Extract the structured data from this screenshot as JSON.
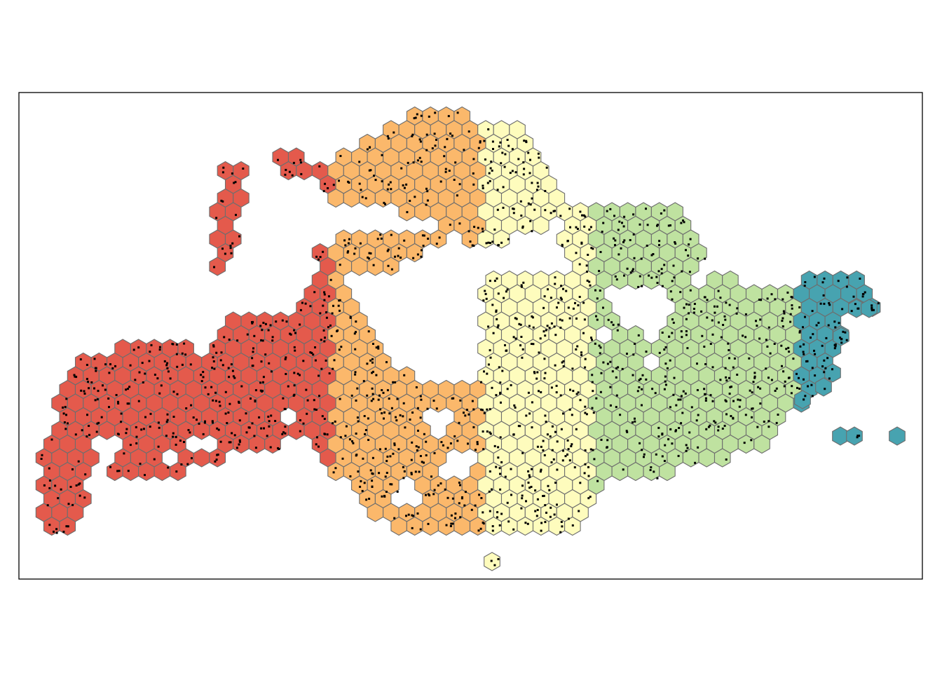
{
  "map": {
    "type": "hexbin-cluster-map",
    "frame": true,
    "hex_outline_color": "#6e6e6e",
    "point_color": "#000000",
    "clusters": [
      {
        "id": 1,
        "color": "#e45a4c"
      },
      {
        "id": 2,
        "color": "#fbb86b"
      },
      {
        "id": 3,
        "color": "#fefcbd"
      },
      {
        "id": 4,
        "color": "#bfe2a0"
      },
      {
        "id": 5,
        "color": "#47a3b0"
      }
    ]
  }
}
